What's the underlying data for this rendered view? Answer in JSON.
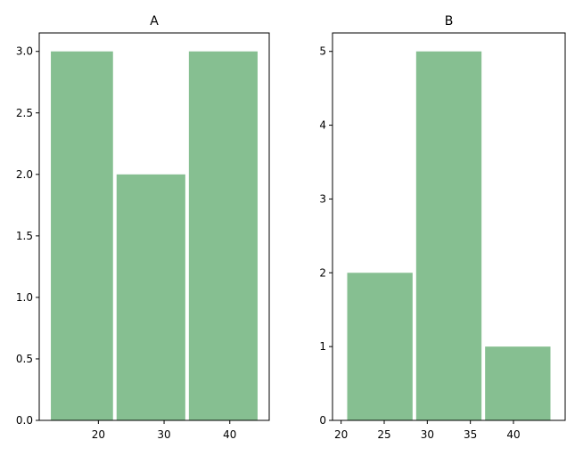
{
  "bar_color": "#86bf91",
  "chart_data": [
    {
      "type": "bar",
      "title": "A",
      "xlabel": "",
      "ylabel": "",
      "bins": [
        [
          12.5,
          22.5
        ],
        [
          22.5,
          33.5
        ],
        [
          33.5,
          44.5
        ]
      ],
      "values": [
        3,
        2,
        3
      ],
      "xlim": [
        11,
        46
      ],
      "ylim": [
        0,
        3.15
      ],
      "xticks": [
        20,
        30,
        40
      ],
      "xtick_labels": [
        "20",
        "30",
        "40"
      ],
      "yticks": [
        0,
        0.5,
        1.0,
        1.5,
        2.0,
        2.5,
        3.0
      ],
      "ytick_labels": [
        "0.0",
        "0.5",
        "1.0",
        "1.5",
        "2.0",
        "2.5",
        "3.0"
      ],
      "grid": false
    },
    {
      "type": "bar",
      "title": "B",
      "xlabel": "",
      "ylabel": "",
      "bins": [
        [
          20.5,
          28.5
        ],
        [
          28.5,
          36.5
        ],
        [
          36.5,
          44.5
        ]
      ],
      "values": [
        2,
        5,
        1
      ],
      "xlim": [
        19,
        46
      ],
      "ylim": [
        0,
        5.25
      ],
      "xticks": [
        20,
        25,
        30,
        35,
        40
      ],
      "xtick_labels": [
        "20",
        "25",
        "30",
        "35",
        "40"
      ],
      "yticks": [
        0,
        1,
        2,
        3,
        4,
        5
      ],
      "ytick_labels": [
        "0",
        "1",
        "2",
        "3",
        "4",
        "5"
      ],
      "grid": false
    }
  ]
}
